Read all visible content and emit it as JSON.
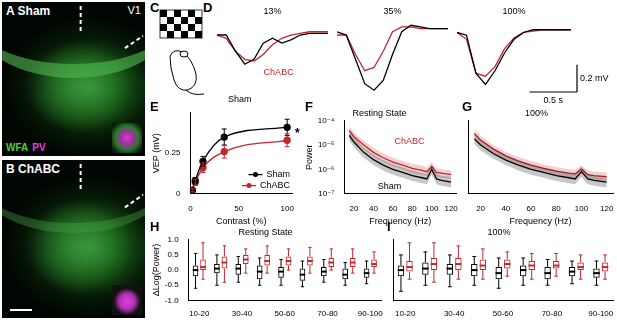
{
  "images": [
    {
      "panel": "A",
      "title": "Sham",
      "labels": [
        "V1"
      ],
      "stains": [
        {
          "text": "WFA",
          "color": "#4cd137"
        },
        {
          "text": "PV",
          "color": "#e040e0"
        }
      ]
    },
    {
      "panel": "B",
      "title": "ChABC"
    },
    {
      "panel": "C"
    }
  ],
  "chart_data": [
    {
      "panel": "D",
      "type": "line",
      "title": "13%",
      "tick_labels": false,
      "x": [
        0,
        0.1,
        0.2,
        0.3,
        0.4,
        0.5,
        0.6,
        0.7,
        0.8,
        0.9,
        1.0,
        1.1,
        1.2
      ],
      "xlim": [
        0,
        1.2
      ],
      "ylim": [
        -0.45,
        0.1
      ],
      "series": [
        {
          "name": "Sham",
          "color": "#000000",
          "values": [
            0,
            0,
            -0.1,
            -0.18,
            -0.15,
            -0.05,
            -0.02,
            -0.05,
            -0.03,
            0,
            0.01,
            0.01,
            0.01
          ]
        },
        {
          "name": "ChABC",
          "color": "#c1272d",
          "values": [
            0,
            -0.02,
            -0.1,
            -0.15,
            -0.16,
            -0.12,
            -0.06,
            -0.02,
            0,
            0.01,
            0.02,
            0.02,
            0.02
          ]
        }
      ],
      "annotations": [
        {
          "text": "ChABC",
          "color": "#c1272d"
        },
        {
          "text": "Sham",
          "color": "#000000"
        }
      ]
    },
    {
      "type": "line",
      "title": "35%",
      "tick_labels": false,
      "x": [
        0,
        0.1,
        0.2,
        0.3,
        0.4,
        0.5,
        0.6,
        0.7,
        0.8,
        0.9,
        1.0,
        1.1,
        1.2
      ],
      "xlim": [
        0,
        1.2
      ],
      "ylim": [
        -0.45,
        0.1
      ],
      "series": [
        {
          "name": "Sham",
          "color": "#000000",
          "values": [
            0.02,
            0,
            -0.15,
            -0.3,
            -0.34,
            -0.28,
            -0.12,
            0.02,
            0.06,
            0.05,
            0.04,
            0.04,
            0.04
          ]
        },
        {
          "name": "ChABC",
          "color": "#c1272d",
          "values": [
            0,
            0,
            -0.12,
            -0.22,
            -0.2,
            -0.1,
            0.02,
            0.05,
            0.05,
            0.04,
            0.04,
            0.04,
            0.04
          ]
        }
      ]
    },
    {
      "type": "line",
      "title": "100%",
      "tick_labels": false,
      "x": [
        0,
        0.1,
        0.2,
        0.3,
        0.4,
        0.5,
        0.6,
        0.7,
        0.8,
        0.9,
        1.0,
        1.1,
        1.2
      ],
      "xlim": [
        0,
        1.2
      ],
      "ylim": [
        -0.45,
        0.1
      ],
      "series": [
        {
          "name": "Sham",
          "color": "#000000",
          "values": [
            0,
            -0.02,
            -0.3,
            -0.38,
            -0.28,
            -0.15,
            -0.05,
            0,
            0.02,
            0.02,
            0.02,
            0.02,
            0.02
          ]
        },
        {
          "name": "ChABC",
          "color": "#c1272d",
          "values": [
            0,
            -0.05,
            -0.3,
            -0.32,
            -0.25,
            -0.12,
            -0.04,
            0,
            0.01,
            0.02,
            0.02,
            0.02,
            0.02
          ]
        }
      ],
      "scale_bars": [
        {
          "axis": "y",
          "value": 0.2,
          "label": "0.2 mV"
        },
        {
          "axis": "x",
          "value": 0.5,
          "label": "0.5 s"
        }
      ]
    },
    {
      "panel": "E",
      "type": "line",
      "xlabel": "Contrast (%)",
      "ylabel": "VEP (mV)",
      "x": [
        2,
        5,
        13,
        35,
        100
      ],
      "xlim": [
        0,
        105
      ],
      "xticks": [
        0,
        50,
        100
      ],
      "ylim": [
        0,
        0.5
      ],
      "yticks": [
        0,
        0.25
      ],
      "grid": false,
      "marker": "circle",
      "legend": "lower right",
      "series": [
        {
          "name": "Sham",
          "color": "#000000",
          "values": [
            0.02,
            0.08,
            0.2,
            0.35,
            0.41
          ],
          "error": [
            0.01,
            0.02,
            0.03,
            0.05,
            0.05
          ]
        },
        {
          "name": "ChABC",
          "color": "#c1272d",
          "values": [
            0.02,
            0.07,
            0.16,
            0.26,
            0.33
          ],
          "error": [
            0.01,
            0.02,
            0.03,
            0.04,
            0.04
          ]
        }
      ],
      "annotations": [
        {
          "text": "*",
          "color": "#000000"
        }
      ]
    },
    {
      "panel": "F",
      "type": "line",
      "title": "Resting State",
      "log": "y",
      "xlabel": "Frequency (Hz)",
      "ylabel": "Power",
      "grid": false,
      "x": [
        15,
        20,
        30,
        40,
        50,
        60,
        70,
        80,
        90,
        95,
        100,
        105,
        110,
        120
      ],
      "xlim": [
        10,
        125
      ],
      "xticks": [
        20,
        40,
        60,
        80,
        100,
        120
      ],
      "ylim": [
        1e-07,
        0.0001
      ],
      "yticks": [
        {
          "value": 1e-07,
          "label": "10⁻⁷"
        },
        {
          "value": 1e-06,
          "label": "10⁻⁶"
        },
        {
          "value": 1e-05,
          "label": "10⁻⁵"
        },
        {
          "value": 0.0001,
          "label": "10⁻⁴"
        }
      ],
      "series": [
        {
          "name": "Sham",
          "color": "#000000",
          "values": [
            2.5e-05,
            1.3e-05,
            5e-06,
            2.5e-06,
            1.5e-06,
            1e-06,
            7.5e-07,
            5.5e-07,
            4.5e-07,
            4e-07,
            1e-06,
            4e-07,
            3.5e-07,
            3e-07
          ],
          "lower": [
            1.5e-05,
            8e-06,
            3e-06,
            1.5e-06,
            9e-07,
            6e-07,
            4.5e-07,
            3.3e-07,
            2.7e-07,
            2.4e-07,
            6e-07,
            2.4e-07,
            2.1e-07,
            1.8e-07
          ],
          "upper": [
            4e-05,
            2e-05,
            8e-06,
            4e-06,
            2.4e-06,
            1.6e-06,
            1.2e-06,
            9e-07,
            7e-07,
            6.5e-07,
            1.6e-06,
            6.5e-07,
            5.5e-07,
            5e-07
          ]
        },
        {
          "name": "ChABC",
          "color": "#c1272d",
          "values": [
            4e-05,
            2.2e-05,
            1e-05,
            5e-06,
            3e-06,
            2e-06,
            1.5e-06,
            1.1e-06,
            9e-07,
            8e-07,
            1.3e-06,
            7.5e-07,
            7e-07,
            6e-07
          ],
          "lower": [
            2.6e-05,
            1.4e-05,
            6.5e-06,
            3.2e-06,
            2e-06,
            1.3e-06,
            1e-06,
            7e-07,
            6e-07,
            5.2e-07,
            8.5e-07,
            5e-07,
            4.6e-07,
            4e-07
          ],
          "upper": [
            6e-05,
            3.3e-05,
            1.5e-05,
            7.5e-06,
            4.5e-06,
            3e-06,
            2.2e-06,
            1.7e-06,
            1.4e-06,
            1.2e-06,
            2e-06,
            1.1e-06,
            1e-06,
            9e-07
          ]
        }
      ],
      "annotations": [
        {
          "text": "ChABC",
          "color": "#c1272d"
        },
        {
          "text": "Sham",
          "color": "#000000"
        }
      ]
    },
    {
      "panel": "G",
      "type": "line",
      "title": "100%",
      "log": "y",
      "xlabel": "Frequency (Hz)",
      "grid": false,
      "tick_labels": "x",
      "x": [
        15,
        20,
        30,
        40,
        50,
        60,
        70,
        80,
        90,
        95,
        100,
        105,
        110,
        120
      ],
      "xlim": [
        10,
        125
      ],
      "xticks": [
        20,
        40,
        60,
        80,
        100,
        120
      ],
      "ylim": [
        1e-07,
        0.0001
      ],
      "series": [
        {
          "name": "Sham",
          "color": "#000000",
          "values": [
            1.8e-05,
            1e-05,
            4.5e-06,
            2.4e-06,
            1.5e-06,
            1e-06,
            7.5e-07,
            5.5e-07,
            4.5e-07,
            4e-07,
            8e-07,
            4e-07,
            3.5e-07,
            3e-07
          ],
          "lower": [
            1.1e-05,
            6e-06,
            2.8e-06,
            1.5e-06,
            9e-07,
            6e-07,
            4.5e-07,
            3.3e-07,
            2.7e-07,
            2.4e-07,
            5e-07,
            2.4e-07,
            2.1e-07,
            1.8e-07
          ],
          "upper": [
            3e-05,
            1.6e-05,
            7e-06,
            3.8e-06,
            2.4e-06,
            1.6e-06,
            1.2e-06,
            9e-07,
            7e-07,
            6.5e-07,
            1.3e-06,
            6.5e-07,
            5.5e-07,
            5e-07
          ]
        },
        {
          "name": "ChABC",
          "color": "#c1272d",
          "values": [
            3e-05,
            1.6e-05,
            7e-06,
            3.6e-06,
            2.2e-06,
            1.5e-06,
            1.1e-06,
            8.5e-07,
            7e-07,
            6.5e-07,
            1e-06,
            6e-07,
            5.5e-07,
            5e-07
          ],
          "lower": [
            2e-05,
            1.1e-05,
            4.8e-06,
            2.5e-06,
            1.5e-06,
            1e-06,
            7.5e-07,
            5.8e-07,
            4.8e-07,
            4.4e-07,
            7e-07,
            4e-07,
            3.7e-07,
            3.4e-07
          ],
          "upper": [
            4.5e-05,
            2.4e-05,
            1e-05,
            5.2e-06,
            3.2e-06,
            2.2e-06,
            1.6e-06,
            1.25e-06,
            1e-06,
            9.5e-07,
            1.45e-06,
            9e-07,
            8e-07,
            7.5e-07
          ]
        }
      ]
    },
    {
      "panel": "H",
      "type": "box",
      "title": "Resting State",
      "ylabel": "ΔLog(Power)",
      "grid": false,
      "categories": [
        "10-20",
        null,
        "30-40",
        null,
        "50-60",
        null,
        "70-80",
        null,
        "90-100"
      ],
      "ylim": [
        -1,
        1
      ],
      "yticks": [
        {
          "value": -1,
          "label": "-1.0"
        },
        {
          "value": -0.5,
          "label": "-0.5"
        },
        {
          "value": 0,
          "label": "0.0"
        },
        {
          "value": 0.5,
          "label": "0.5"
        },
        {
          "value": 1,
          "label": "1.0"
        }
      ],
      "series": [
        {
          "name": "Sham",
          "color": "#000000",
          "box": [
            [
              -0.6,
              -0.2,
              0.0,
              0.15,
              0.55
            ],
            [
              -0.5,
              -0.1,
              0.05,
              0.2,
              0.5
            ],
            [
              -0.4,
              -0.15,
              0.05,
              0.2,
              0.45
            ],
            [
              -0.5,
              -0.3,
              -0.05,
              0.15,
              0.4
            ],
            [
              -0.5,
              -0.25,
              -0.05,
              0.1,
              0.35
            ],
            [
              -0.55,
              -0.35,
              -0.15,
              0.05,
              0.3
            ],
            [
              -0.4,
              -0.2,
              -0.05,
              0.1,
              0.35
            ],
            [
              -0.5,
              -0.3,
              -0.15,
              0.05,
              0.25
            ],
            [
              -0.45,
              -0.25,
              -0.1,
              0.05,
              0.3
            ]
          ]
        },
        {
          "name": "ChABC",
          "color": "#c1272d",
          "box": [
            [
              -0.3,
              0.0,
              0.1,
              0.35,
              0.9
            ],
            [
              -0.4,
              0.05,
              0.25,
              0.45,
              0.8
            ],
            [
              -0.1,
              0.2,
              0.35,
              0.5,
              0.7
            ],
            [
              -0.1,
              0.15,
              0.3,
              0.5,
              0.8
            ],
            [
              0.0,
              0.15,
              0.3,
              0.45,
              0.7
            ],
            [
              -0.1,
              0.15,
              0.3,
              0.45,
              0.75
            ],
            [
              0.0,
              0.1,
              0.25,
              0.4,
              0.7
            ],
            [
              -0.1,
              0.1,
              0.25,
              0.4,
              0.7
            ],
            [
              -0.1,
              0.1,
              0.2,
              0.35,
              0.6
            ]
          ]
        }
      ]
    },
    {
      "panel": "I",
      "type": "box",
      "title": "100%",
      "grid": false,
      "tick_labels": "x",
      "categories": [
        "10-20",
        null,
        "30-40",
        null,
        "50-60",
        null,
        "70-80",
        null,
        "90-100"
      ],
      "ylim": [
        -1,
        1
      ],
      "series": [
        {
          "name": "Sham",
          "color": "#000000",
          "box": [
            [
              -0.7,
              -0.2,
              0.0,
              0.15,
              0.5
            ],
            [
              -0.5,
              -0.15,
              0.05,
              0.25,
              0.6
            ],
            [
              -0.55,
              -0.15,
              0.05,
              0.2,
              0.5
            ],
            [
              -0.5,
              -0.2,
              0.0,
              0.2,
              0.45
            ],
            [
              -0.6,
              -0.3,
              -0.1,
              0.1,
              0.4
            ],
            [
              -0.5,
              -0.2,
              0.0,
              0.15,
              0.4
            ],
            [
              -0.5,
              -0.3,
              -0.1,
              0.1,
              0.35
            ],
            [
              -0.45,
              -0.2,
              -0.05,
              0.1,
              0.3
            ],
            [
              -0.5,
              -0.25,
              -0.1,
              0.05,
              0.3
            ]
          ]
        },
        {
          "name": "ChABC",
          "color": "#c1272d",
          "box": [
            [
              -0.3,
              -0.05,
              0.1,
              0.3,
              0.9
            ],
            [
              -0.4,
              0.0,
              0.2,
              0.4,
              0.9
            ],
            [
              -0.3,
              0.0,
              0.2,
              0.4,
              0.8
            ],
            [
              -0.3,
              0.0,
              0.15,
              0.35,
              0.7
            ],
            [
              -0.2,
              0.05,
              0.2,
              0.35,
              0.6
            ],
            [
              -0.3,
              0.0,
              0.15,
              0.3,
              0.55
            ],
            [
              -0.2,
              0.05,
              0.15,
              0.3,
              0.55
            ],
            [
              -0.3,
              0.0,
              0.1,
              0.25,
              0.5
            ],
            [
              -0.3,
              -0.05,
              0.1,
              0.25,
              0.5
            ]
          ]
        }
      ]
    }
  ]
}
